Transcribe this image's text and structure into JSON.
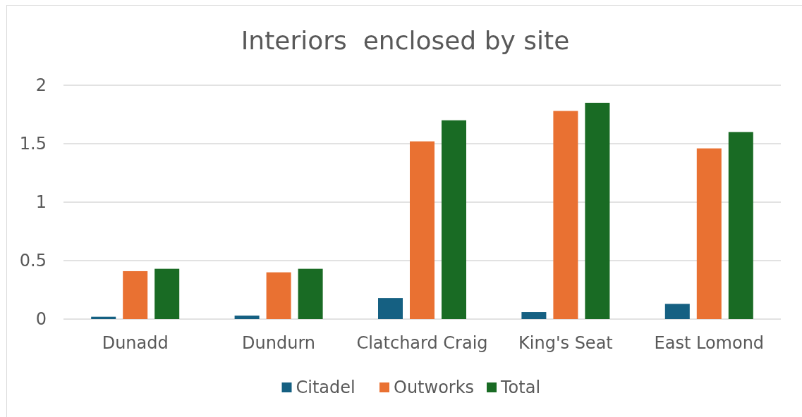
{
  "chart_data": {
    "type": "bar",
    "title": "Interiors  enclosed by site",
    "categories": [
      "Dunadd",
      "Dundurn",
      "Clatchard Craig",
      "King's Seat",
      "East Lomond"
    ],
    "series": [
      {
        "name": "Citadel",
        "color": "#156082",
        "values": [
          0.02,
          0.03,
          0.18,
          0.06,
          0.13
        ]
      },
      {
        "name": "Outworks",
        "color": "#e97132",
        "values": [
          0.41,
          0.4,
          1.52,
          1.78,
          1.46
        ]
      },
      {
        "name": "Total",
        "color": "#196b24",
        "values": [
          0.43,
          0.43,
          1.7,
          1.85,
          1.6
        ]
      }
    ],
    "ylim": [
      0,
      2
    ],
    "yticks": [
      0,
      0.5,
      1,
      1.5,
      2
    ],
    "grid": "y",
    "legend": "bottom"
  }
}
